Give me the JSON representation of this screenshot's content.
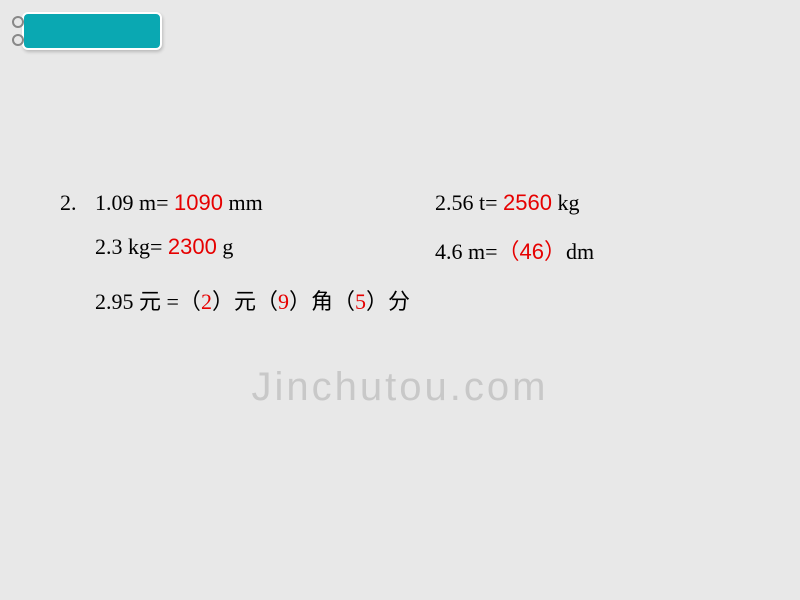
{
  "problem": {
    "number": "2.",
    "rows": [
      {
        "left": {
          "prefix": "1.09 m= ",
          "answer": "1090",
          "suffix": " mm"
        },
        "right": {
          "prefix": "2.56 t= ",
          "answer": "2560",
          "suffix": " kg"
        }
      },
      {
        "left": {
          "prefix": "2.3 kg= ",
          "answer": "2300",
          "suffix": " g"
        },
        "right": {
          "prefix": "4.6 m=",
          "answer": "（46）",
          "suffix": "dm"
        }
      }
    ],
    "row3": {
      "prefix": "2.95 元 =",
      "parts": [
        {
          "paren_open": "（",
          "answer": "2",
          "paren_close": "）",
          "unit": "元"
        },
        {
          "paren_open": "（",
          "answer": "9",
          "paren_close": "）",
          "unit": "角"
        },
        {
          "paren_open": "（",
          "answer": "5",
          "paren_close": "）",
          "unit": "分"
        }
      ]
    }
  },
  "watermark": {
    "text_j": "J",
    "text_rest": "inchutou.com"
  },
  "colors": {
    "teal": "#0aa8b2",
    "background": "#e8e8e8",
    "answer_red": "#e60000",
    "text_black": "#000000",
    "watermark_gray": "#c8c8c8"
  }
}
